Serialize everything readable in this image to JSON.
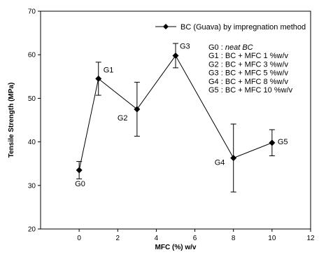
{
  "chart_data": {
    "type": "line",
    "title": "",
    "xlabel": "MFC (%) w/v",
    "ylabel": "Tensile Strength (MPa)",
    "xlim": [
      -2,
      12
    ],
    "ylim": [
      20,
      70
    ],
    "xticks": [
      0,
      2,
      4,
      6,
      8,
      10,
      12
    ],
    "yticks": [
      20,
      30,
      40,
      50,
      60,
      70
    ],
    "grid": false,
    "legend_position": "top-right",
    "series": [
      {
        "name": "BC (Guava) by impregnation method",
        "color": "#000000",
        "marker": "diamond",
        "x": [
          0,
          1,
          3,
          5,
          8,
          10
        ],
        "y": [
          33.5,
          54.5,
          47.5,
          59.8,
          36.3,
          39.8
        ],
        "error": [
          2.0,
          3.8,
          6.2,
          2.8,
          7.8,
          3.0
        ],
        "labels": [
          "G0",
          "G1",
          "G2",
          "G3",
          "G4",
          "G5"
        ]
      }
    ],
    "annotations": [
      {
        "code": "G0",
        "sep": " : ",
        "text": "neat BC",
        "italic": true
      },
      {
        "code": "G1",
        "sep": " : ",
        "text": "BC + MFC 1 %w/v",
        "italic": false
      },
      {
        "code": "G2",
        "sep": " : ",
        "text": "BC + MFC 3 %w/v",
        "italic": false
      },
      {
        "code": "G3",
        "sep": " : ",
        "text": "BC + MFC 5 %w/v",
        "italic": false
      },
      {
        "code": "G4",
        "sep": " : ",
        "text": "BC + MFC 8 %w/v",
        "italic": false
      },
      {
        "code": "G5",
        "sep": " : ",
        "text": "BC + MFC 10 %w/v",
        "italic": false
      }
    ]
  }
}
